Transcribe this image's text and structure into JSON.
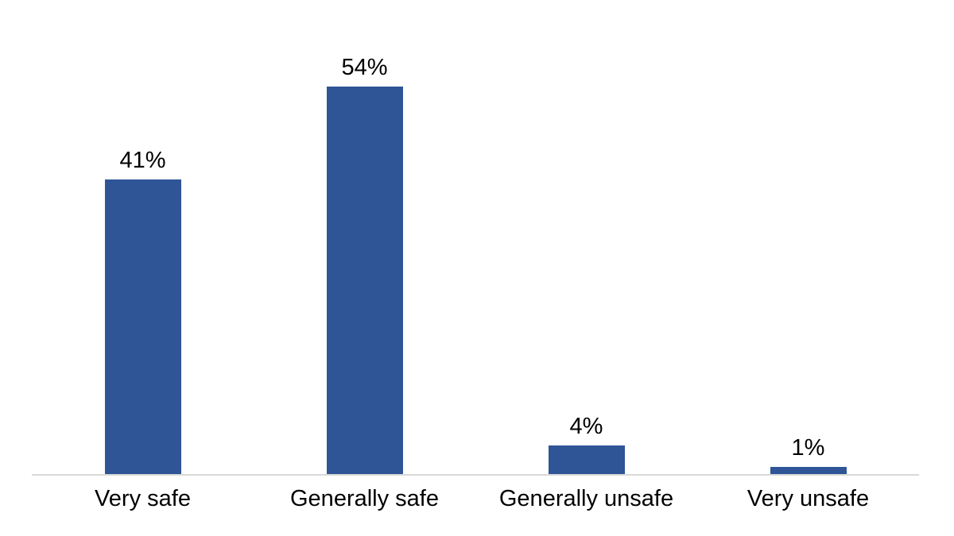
{
  "chart_data": {
    "type": "bar",
    "categories": [
      "Very safe",
      "Generally safe",
      "Generally unsafe",
      "Very unsafe"
    ],
    "values": [
      41,
      54,
      4,
      1
    ],
    "value_labels": [
      "41%",
      "54%",
      "4%",
      "1%"
    ],
    "series_name": "",
    "title": "",
    "xlabel": "",
    "ylabel": "",
    "ylim": [
      0,
      66
    ],
    "unit": "%",
    "grid": false,
    "legend": false,
    "bar_color": "#2F5597",
    "axis_line_color": "#D9D9D9",
    "label_color": "#000000",
    "background_color": "#FFFFFF"
  }
}
